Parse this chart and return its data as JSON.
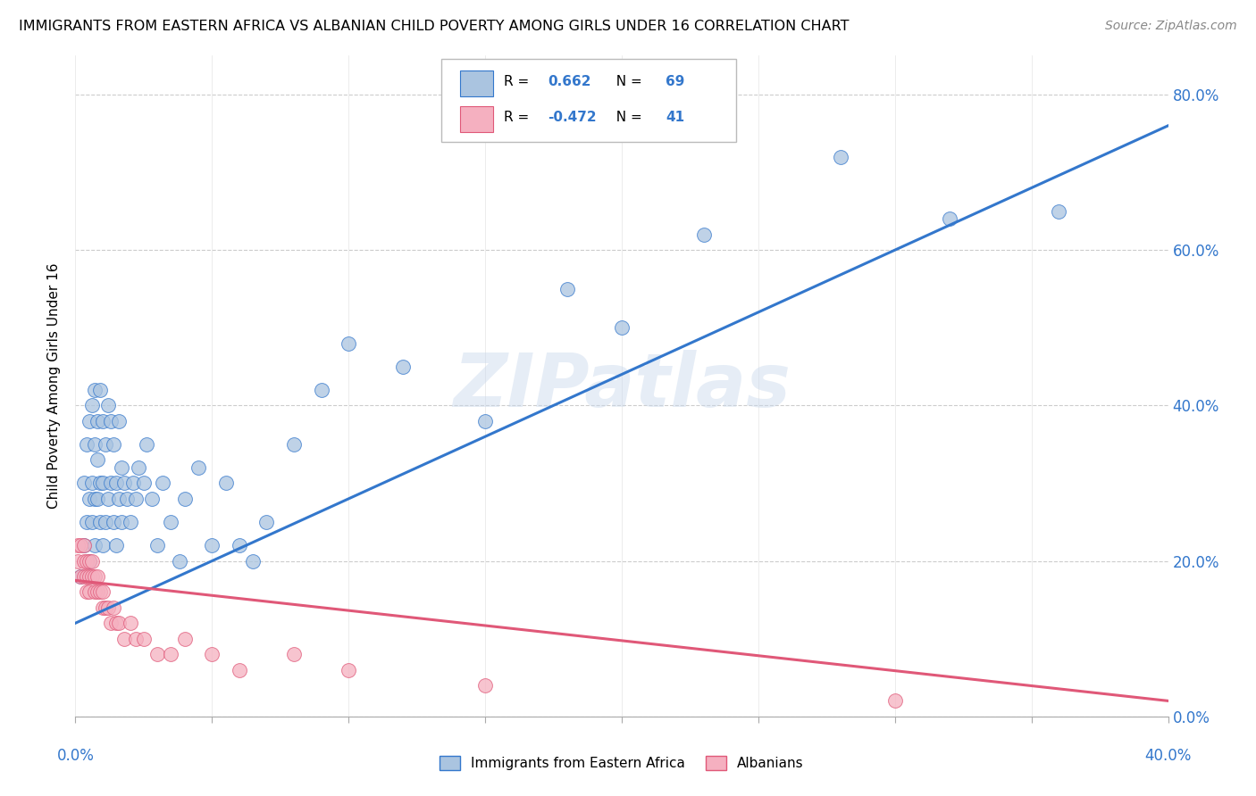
{
  "title": "IMMIGRANTS FROM EASTERN AFRICA VS ALBANIAN CHILD POVERTY AMONG GIRLS UNDER 16 CORRELATION CHART",
  "source": "Source: ZipAtlas.com",
  "ylabel": "Child Poverty Among Girls Under 16",
  "blue_R": "0.662",
  "blue_N": "69",
  "pink_R": "-0.472",
  "pink_N": "41",
  "blue_color": "#aac4e0",
  "blue_line_color": "#3377cc",
  "pink_color": "#f5b0c0",
  "pink_line_color": "#e05878",
  "legend_blue_label": "Immigrants from Eastern Africa",
  "legend_pink_label": "Albanians",
  "watermark": "ZIPatlas",
  "xlim": [
    0.0,
    0.4
  ],
  "ylim": [
    0.0,
    0.85
  ],
  "blue_trend_x": [
    0.0,
    0.4
  ],
  "blue_trend_y": [
    0.12,
    0.76
  ],
  "pink_trend_x": [
    0.0,
    0.4
  ],
  "pink_trend_y": [
    0.175,
    0.02
  ],
  "blue_scatter_x": [
    0.002,
    0.003,
    0.003,
    0.004,
    0.004,
    0.005,
    0.005,
    0.005,
    0.006,
    0.006,
    0.006,
    0.007,
    0.007,
    0.007,
    0.007,
    0.008,
    0.008,
    0.008,
    0.009,
    0.009,
    0.009,
    0.01,
    0.01,
    0.01,
    0.011,
    0.011,
    0.012,
    0.012,
    0.013,
    0.013,
    0.014,
    0.014,
    0.015,
    0.015,
    0.016,
    0.016,
    0.017,
    0.017,
    0.018,
    0.019,
    0.02,
    0.021,
    0.022,
    0.023,
    0.025,
    0.026,
    0.028,
    0.03,
    0.032,
    0.035,
    0.038,
    0.04,
    0.045,
    0.05,
    0.055,
    0.06,
    0.065,
    0.07,
    0.08,
    0.09,
    0.1,
    0.12,
    0.15,
    0.18,
    0.2,
    0.23,
    0.28,
    0.32,
    0.36
  ],
  "blue_scatter_y": [
    0.18,
    0.22,
    0.3,
    0.25,
    0.35,
    0.2,
    0.28,
    0.38,
    0.25,
    0.3,
    0.4,
    0.22,
    0.28,
    0.35,
    0.42,
    0.28,
    0.33,
    0.38,
    0.25,
    0.3,
    0.42,
    0.22,
    0.3,
    0.38,
    0.25,
    0.35,
    0.28,
    0.4,
    0.3,
    0.38,
    0.25,
    0.35,
    0.22,
    0.3,
    0.28,
    0.38,
    0.25,
    0.32,
    0.3,
    0.28,
    0.25,
    0.3,
    0.28,
    0.32,
    0.3,
    0.35,
    0.28,
    0.22,
    0.3,
    0.25,
    0.2,
    0.28,
    0.32,
    0.22,
    0.3,
    0.22,
    0.2,
    0.25,
    0.35,
    0.42,
    0.48,
    0.45,
    0.38,
    0.55,
    0.5,
    0.62,
    0.72,
    0.64,
    0.65
  ],
  "pink_scatter_x": [
    0.001,
    0.001,
    0.002,
    0.002,
    0.003,
    0.003,
    0.003,
    0.004,
    0.004,
    0.004,
    0.005,
    0.005,
    0.005,
    0.006,
    0.006,
    0.007,
    0.007,
    0.008,
    0.008,
    0.009,
    0.01,
    0.01,
    0.011,
    0.012,
    0.013,
    0.014,
    0.015,
    0.016,
    0.018,
    0.02,
    0.022,
    0.025,
    0.03,
    0.035,
    0.04,
    0.05,
    0.06,
    0.08,
    0.1,
    0.15,
    0.3
  ],
  "pink_scatter_y": [
    0.2,
    0.22,
    0.18,
    0.22,
    0.18,
    0.2,
    0.22,
    0.16,
    0.18,
    0.2,
    0.16,
    0.18,
    0.2,
    0.18,
    0.2,
    0.16,
    0.18,
    0.16,
    0.18,
    0.16,
    0.14,
    0.16,
    0.14,
    0.14,
    0.12,
    0.14,
    0.12,
    0.12,
    0.1,
    0.12,
    0.1,
    0.1,
    0.08,
    0.08,
    0.1,
    0.08,
    0.06,
    0.08,
    0.06,
    0.04,
    0.02
  ]
}
